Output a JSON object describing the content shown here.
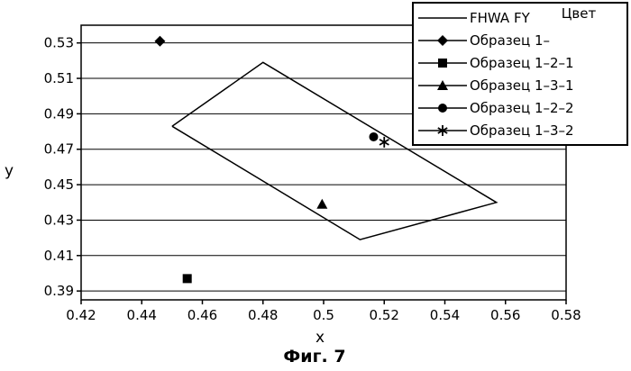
{
  "chart_data": {
    "type": "scatter",
    "xlabel": "x",
    "ylabel": "y",
    "xlim": [
      0.42,
      0.58
    ],
    "ylim": [
      0.385,
      0.54
    ],
    "x_ticks": [
      "0.42",
      "0.44",
      "0.46",
      "0.48",
      "0.5",
      "0.52",
      "0.54",
      "0.56",
      "0.58"
    ],
    "y_ticks": [
      "0.39",
      "0.41",
      "0.43",
      "0.45",
      "0.47",
      "0.49",
      "0.51",
      "0.53"
    ],
    "grid": "horizontal",
    "legend_position": "top-right",
    "legend_header": "Цвет",
    "polygon": {
      "name": "FHWA  FY",
      "points": [
        [
          0.45,
          0.483
        ],
        [
          0.48,
          0.519
        ],
        [
          0.557,
          0.44
        ],
        [
          0.512,
          0.419
        ],
        [
          0.45,
          0.483
        ]
      ]
    },
    "series": [
      {
        "name": "Образец  1–",
        "marker": "diamond",
        "points": [
          [
            0.446,
            0.531
          ]
        ]
      },
      {
        "name": "Образец  1–2–1",
        "marker": "square",
        "points": [
          [
            0.455,
            0.397
          ]
        ]
      },
      {
        "name": "Образец  1–3–1",
        "marker": "triangle",
        "points": [
          [
            0.4995,
            0.439
          ]
        ]
      },
      {
        "name": "Образец  1–2–2",
        "marker": "circle",
        "points": [
          [
            0.5165,
            0.477
          ]
        ]
      },
      {
        "name": "Образец  1–3–2",
        "marker": "star",
        "points": [
          [
            0.52,
            0.474
          ]
        ]
      }
    ]
  },
  "caption": "Фиг. 7"
}
